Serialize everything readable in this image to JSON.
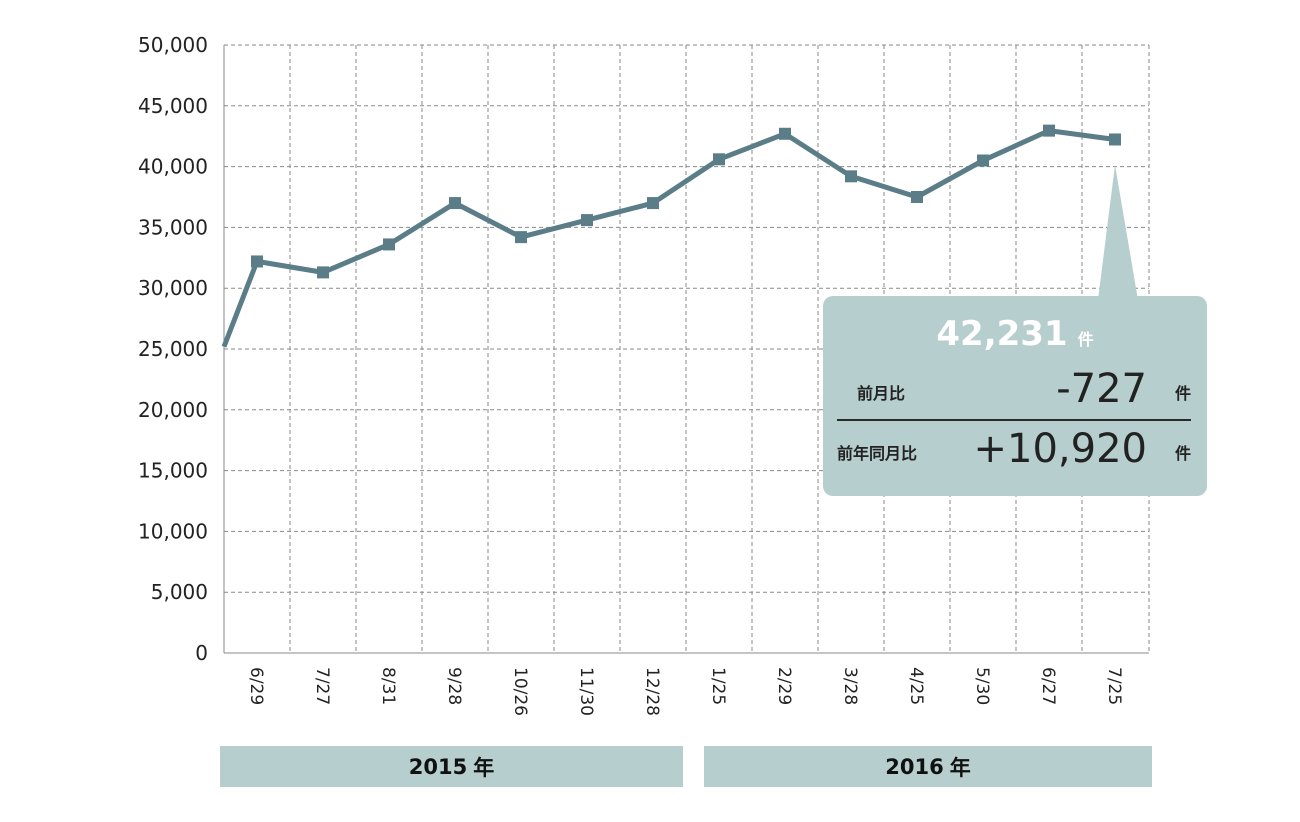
{
  "chart_data": {
    "type": "line",
    "title": "",
    "xlabel": "",
    "ylabel": "",
    "ylim": [
      0,
      50000
    ],
    "yticks": [
      "0",
      "5,000",
      "10,000",
      "15,000",
      "20,000",
      "25,000",
      "30,000",
      "35,000",
      "40,000",
      "45,000",
      "50,000"
    ],
    "categories": [
      "6/29",
      "7/27",
      "8/31",
      "9/28",
      "10/26",
      "11/30",
      "12/28",
      "1/25",
      "2/29",
      "3/28",
      "4/25",
      "5/30",
      "6/27",
      "7/25"
    ],
    "series": [
      {
        "values": [
          32200,
          31300,
          33600,
          37000,
          34200,
          35600,
          37000,
          40600,
          42700,
          39200,
          37500,
          40500,
          42958,
          42231
        ],
        "color": "#5a7d87"
      }
    ],
    "lead_in_value": 25200,
    "grid": true,
    "grid_style": "dashed",
    "years": [
      {
        "label": "2015",
        "unit": "年"
      },
      {
        "label": "2016",
        "unit": "年"
      }
    ]
  },
  "callout": {
    "value": "42,231",
    "unit": "件",
    "rows": [
      {
        "label": "前月比",
        "value": "-727",
        "unit": "件"
      },
      {
        "label": "前年同月比",
        "value": "+10,920",
        "unit": "件"
      }
    ],
    "background": "#b6cecd"
  }
}
